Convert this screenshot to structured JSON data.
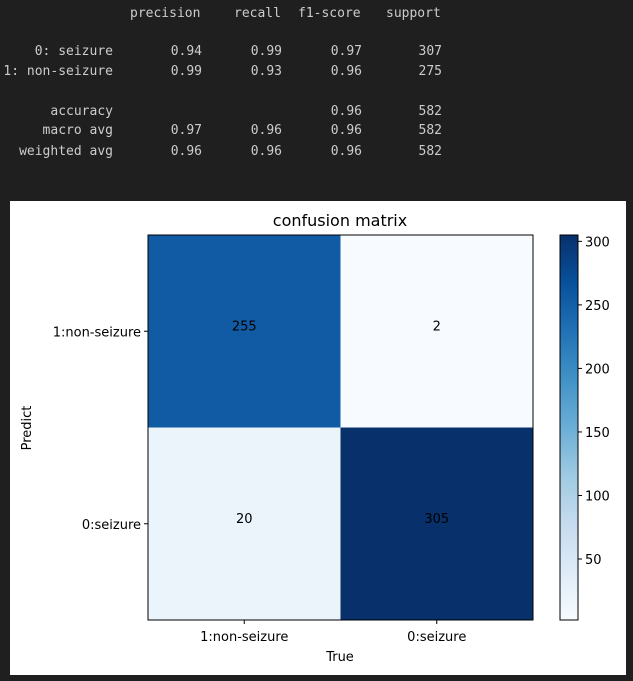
{
  "report": {
    "headers": [
      "precision",
      "recall",
      "f1-score",
      "support"
    ],
    "rows": [
      {
        "label": "0: seizure",
        "precision": "0.94",
        "recall": "0.99",
        "f1": "0.97",
        "support": "307"
      },
      {
        "label": "1: non-seizure",
        "precision": "0.99",
        "recall": "0.93",
        "f1": "0.96",
        "support": "275"
      },
      {
        "label": "accuracy",
        "precision": "",
        "recall": "",
        "f1": "0.96",
        "support": "582"
      },
      {
        "label": "macro avg",
        "precision": "0.97",
        "recall": "0.96",
        "f1": "0.96",
        "support": "582"
      },
      {
        "label": "weighted avg",
        "precision": "0.96",
        "recall": "0.96",
        "f1": "0.96",
        "support": "582"
      }
    ]
  },
  "chart_data": {
    "type": "heatmap",
    "title": "confusion matrix",
    "xlabel": "True",
    "ylabel": "Predict",
    "x_categories": [
      "1:non-seizure",
      "0:seizure"
    ],
    "y_categories": [
      "1:non-seizure",
      "0:seizure"
    ],
    "values": [
      [
        255,
        2
      ],
      [
        20,
        305
      ]
    ],
    "colormap": "Blues",
    "colorbar": {
      "min": 2,
      "max": 305,
      "ticks": [
        50,
        100,
        150,
        200,
        250,
        300
      ]
    }
  }
}
